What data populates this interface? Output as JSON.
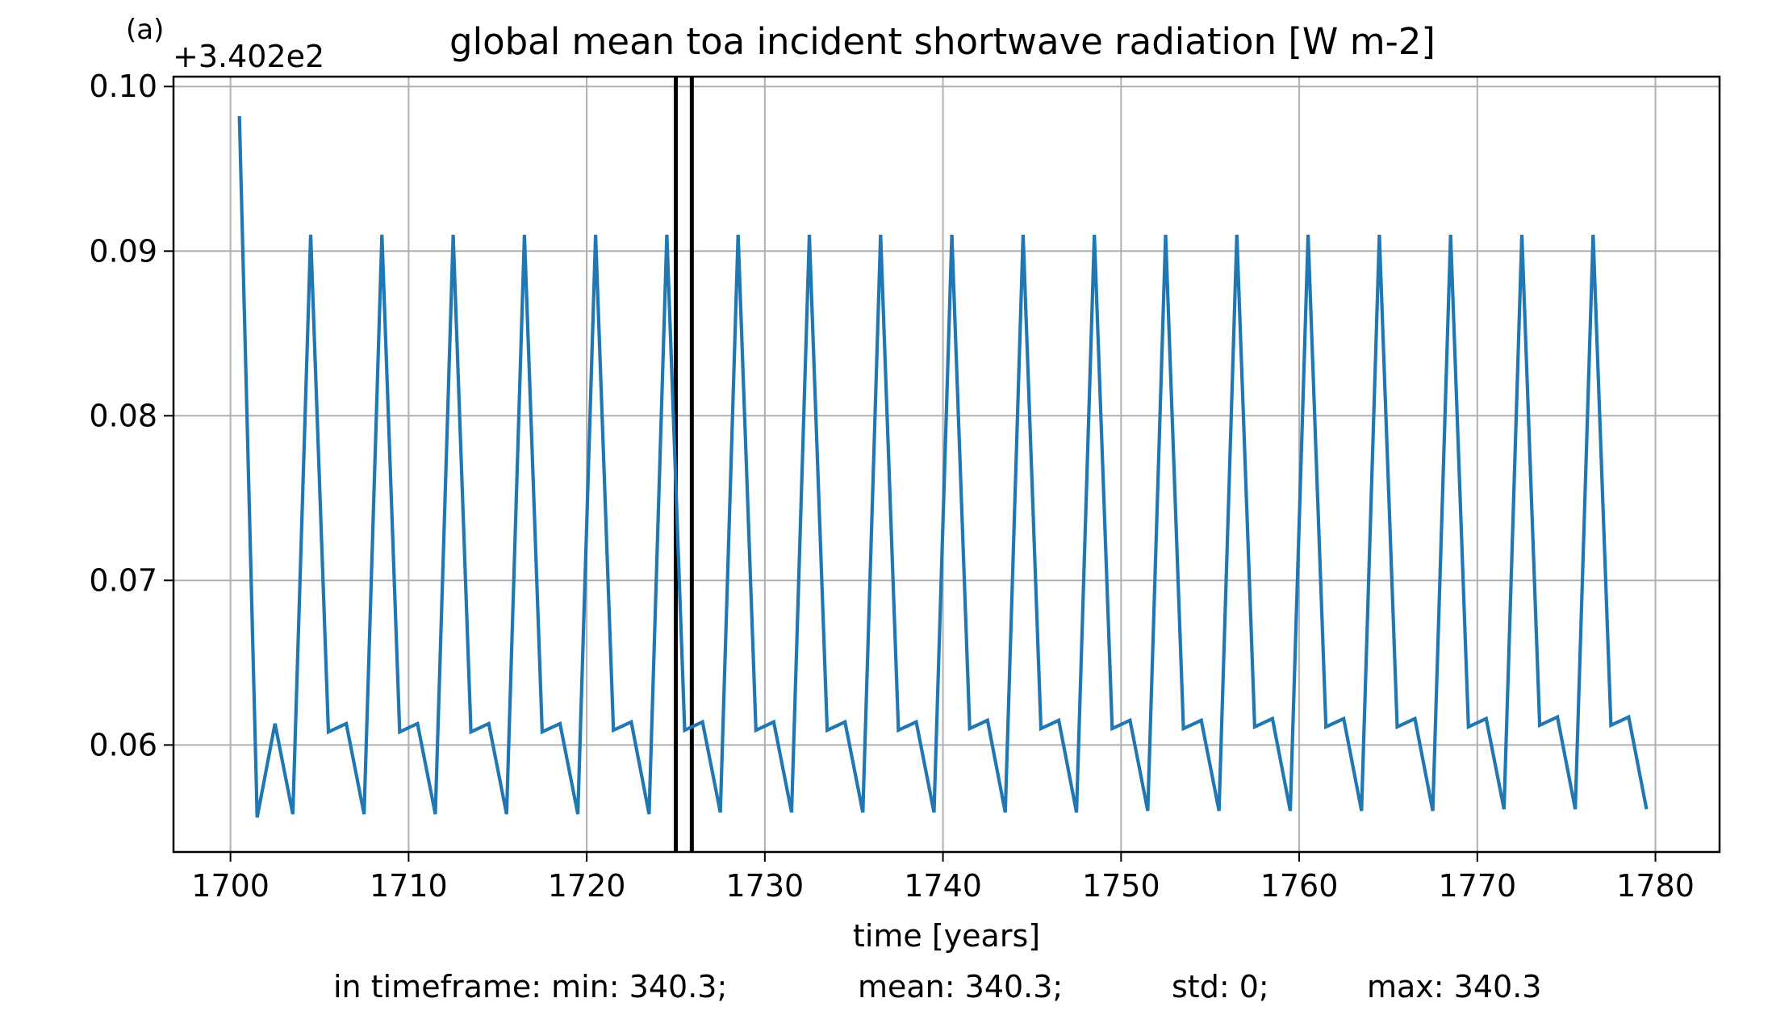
{
  "panel_label": "(a)",
  "chart_data": {
    "type": "line",
    "title": "global mean toa incident shortwave radiation [W m-2]",
    "xlabel": "time [years]",
    "ylabel": "",
    "y_offset_label": "+3.402e2",
    "y_offset": 340.2,
    "xlim": [
      1696.8,
      1783.6
    ],
    "ylim": [
      0.0535,
      0.1006
    ],
    "xticks": [
      1700,
      1710,
      1720,
      1730,
      1740,
      1750,
      1760,
      1770,
      1780
    ],
    "xtick_labels": [
      "1700",
      "1710",
      "1720",
      "1730",
      "1740",
      "1750",
      "1760",
      "1770",
      "1780"
    ],
    "yticks": [
      0.06,
      0.07,
      0.08,
      0.09,
      0.1
    ],
    "ytick_labels": [
      "0.06",
      "0.07",
      "0.08",
      "0.09",
      "0.10"
    ],
    "grid": true,
    "legend": "none",
    "vertical_lines": [
      1725.0,
      1725.9
    ],
    "series": [
      {
        "color": "#1f77b4",
        "x": [
          1700.5,
          1701.5,
          1702.5,
          1703.5,
          1704.5,
          1705.5,
          1706.5,
          1707.5,
          1708.5,
          1709.5,
          1710.5,
          1711.5,
          1712.5,
          1713.5,
          1714.5,
          1715.5,
          1716.5,
          1717.5,
          1718.5,
          1719.5,
          1720.5,
          1721.5,
          1722.5,
          1723.5,
          1724.5,
          1725.5,
          1726.5,
          1727.5,
          1728.5,
          1729.5,
          1730.5,
          1731.5,
          1732.5,
          1733.5,
          1734.5,
          1735.5,
          1736.5,
          1737.5,
          1738.5,
          1739.5,
          1740.5,
          1741.5,
          1742.5,
          1743.5,
          1744.5,
          1745.5,
          1746.5,
          1747.5,
          1748.5,
          1749.5,
          1750.5,
          1751.5,
          1752.5,
          1753.5,
          1754.5,
          1755.5,
          1756.5,
          1757.5,
          1758.5,
          1759.5,
          1760.5,
          1761.5,
          1762.5,
          1763.5,
          1764.5,
          1765.5,
          1766.5,
          1767.5,
          1768.5,
          1769.5,
          1770.5,
          1771.5,
          1772.5,
          1773.5,
          1774.5,
          1775.5,
          1776.5,
          1777.5,
          1778.5,
          1779.5
        ],
        "values": [
          0.0982,
          0.0556,
          0.0613,
          0.0558,
          0.091,
          0.0608,
          0.0613,
          0.0558,
          0.091,
          0.0608,
          0.0613,
          0.0558,
          0.091,
          0.0608,
          0.0613,
          0.0558,
          0.091,
          0.0608,
          0.0613,
          0.0558,
          0.091,
          0.0609,
          0.0614,
          0.0558,
          0.091,
          0.0609,
          0.0614,
          0.0559,
          0.091,
          0.0609,
          0.0614,
          0.0559,
          0.091,
          0.0609,
          0.0614,
          0.0559,
          0.091,
          0.0609,
          0.0614,
          0.0559,
          0.091,
          0.061,
          0.0615,
          0.0559,
          0.091,
          0.061,
          0.0615,
          0.0559,
          0.091,
          0.061,
          0.0615,
          0.056,
          0.091,
          0.061,
          0.0615,
          0.056,
          0.091,
          0.0611,
          0.0616,
          0.056,
          0.091,
          0.0611,
          0.0616,
          0.056,
          0.091,
          0.0611,
          0.0616,
          0.056,
          0.091,
          0.0611,
          0.0616,
          0.0561,
          0.091,
          0.0612,
          0.0617,
          0.0561,
          0.091,
          0.0612,
          0.0617,
          0.0561
        ]
      }
    ]
  },
  "stats": {
    "min": "in timeframe: min: 340.3;",
    "mean": "mean: 340.3;",
    "std": "std: 0;",
    "max": "max: 340.3"
  }
}
